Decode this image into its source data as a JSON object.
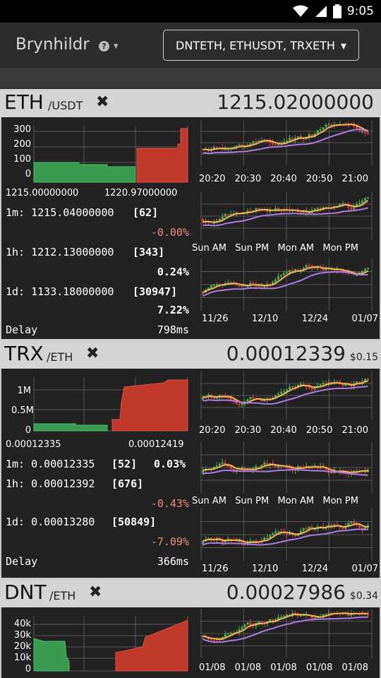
{
  "status": {
    "time": "9:05"
  },
  "app": {
    "title": "Brynhildr",
    "pairs_selected": "DNTETH, ETHUSDT, TRXETH"
  },
  "panels": [
    {
      "symbol": "ETH",
      "quote": "/USDT",
      "price": "1215.02000000",
      "usd": "",
      "depth": {
        "yticks": [
          "300",
          "200",
          "100",
          "0"
        ],
        "xmin": "1215.00000000",
        "xmax": "1220.97000000"
      },
      "stats": {
        "m1": "1m: 1215.04000000",
        "m1_count": "[62]",
        "m1_change": "-0.00%",
        "h1": "1h: 1212.13000000",
        "h1_count": "[343]",
        "h1_change": "0.24%",
        "d1": "1d: 1133.18000000",
        "d1_count": "[30947]",
        "d1_change": "7.22%",
        "delay_label": "Delay",
        "delay": "798ms"
      },
      "charts": [
        {
          "xticks": [
            "20:20",
            "20:30",
            "20:40",
            "20:50",
            "21:00"
          ]
        },
        {
          "xticks": [
            "Sun AM",
            "Sun PM",
            "Mon AM",
            "Mon PM"
          ]
        },
        {
          "xticks": [
            "11/26",
            "12/10",
            "12/24",
            "01/07"
          ]
        }
      ]
    },
    {
      "symbol": "TRX",
      "quote": "/ETH",
      "price": "0.00012339",
      "usd": "$0.15",
      "depth": {
        "yticks": [
          "1M",
          "0.5M",
          "0"
        ],
        "xmin": "0.00012335",
        "xmax": "0.00012419"
      },
      "stats": {
        "m1": "1m: 0.00012335",
        "m1_count": "[52]",
        "m1_change": "0.03%",
        "h1": "1h: 0.00012392",
        "h1_count": "[676]",
        "h1_change": "-0.43%",
        "d1": "1d: 0.00013280",
        "d1_count": "[50849]",
        "d1_change": "-7.09%",
        "delay_label": "Delay",
        "delay": "366ms"
      },
      "charts": [
        {
          "xticks": [
            "20:20",
            "20:30",
            "20:40",
            "20:50",
            "21:00"
          ]
        },
        {
          "xticks": [
            "Sun AM",
            "Sun PM",
            "Mon AM",
            "Mon PM"
          ]
        },
        {
          "xticks": [
            "11/26",
            "12/10",
            "12/24",
            "01/07"
          ]
        }
      ]
    },
    {
      "symbol": "DNT",
      "quote": "/ETH",
      "price": "0.00027986",
      "usd": "$0.34",
      "depth": {
        "yticks": [
          "40k",
          "30k",
          "20k",
          "10k",
          "0"
        ]
      },
      "charts": [
        {
          "xticks": [
            "01/08",
            "01/08",
            "01/08",
            "01/08",
            "01/08"
          ]
        }
      ]
    }
  ],
  "colors": {
    "bid": "#3daa55",
    "ask": "#d9473c",
    "ma_fast": "#f5b65e",
    "ma_slow": "#b07be0",
    "up": "#4caf50",
    "down": "#e0443a"
  },
  "icons": [
    "wifi-icon",
    "signal-icon",
    "battery-icon",
    "help-icon",
    "caret-down-icon",
    "close-icon"
  ]
}
